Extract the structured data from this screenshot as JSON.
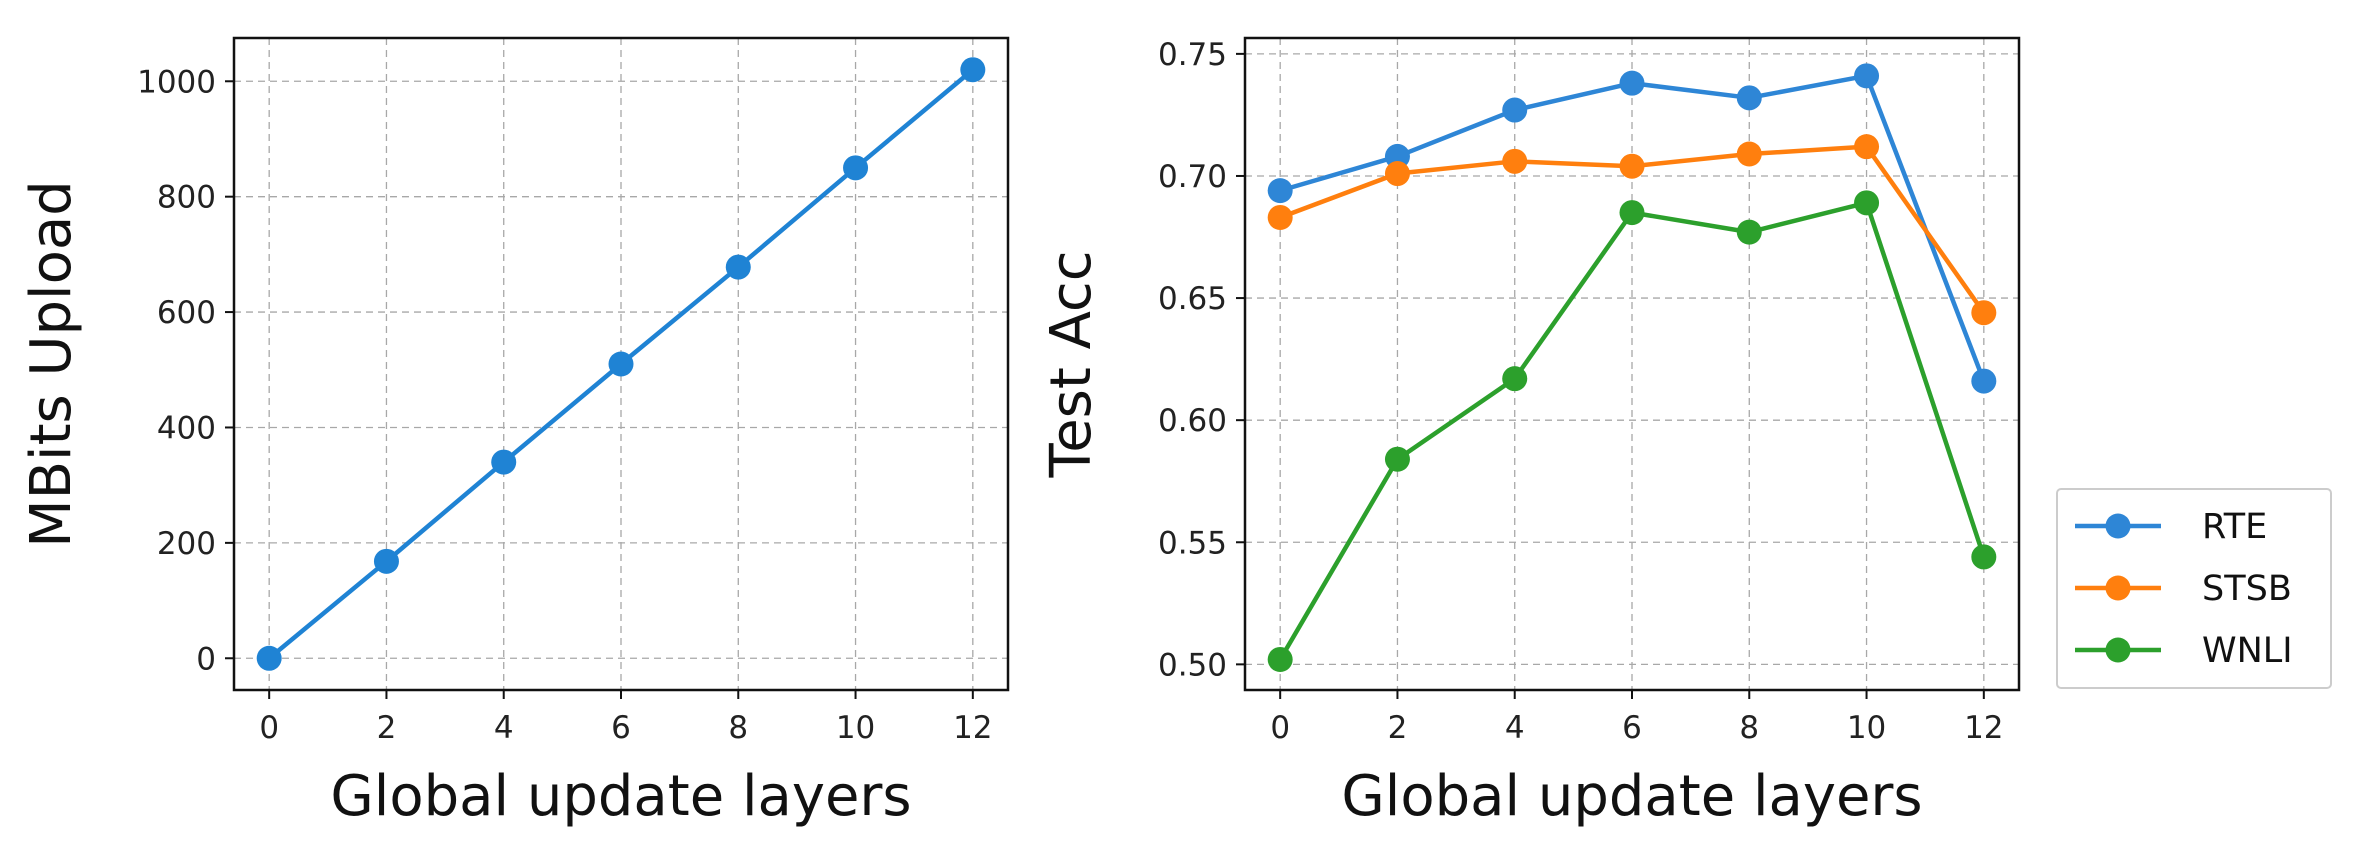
{
  "chart_data": [
    {
      "type": "line",
      "xlabel": "Global update layers",
      "ylabel": "MBits Upload",
      "x": [
        0,
        2,
        4,
        6,
        8,
        10,
        12
      ],
      "xlim": [
        -0.6,
        12.6
      ],
      "ylim": [
        -55,
        1075
      ],
      "xticks": [
        0,
        2,
        4,
        6,
        8,
        10,
        12
      ],
      "yticks": [
        0,
        200,
        400,
        600,
        800,
        1000
      ],
      "grid": true,
      "series": [
        {
          "values": [
            0,
            168,
            340,
            510,
            678,
            850,
            1020
          ],
          "color": "#1f83d4"
        }
      ]
    },
    {
      "type": "line",
      "xlabel": "Global update layers",
      "ylabel": "Test Acc",
      "x": [
        0,
        2,
        4,
        6,
        8,
        10,
        12
      ],
      "xlim": [
        -0.6,
        12.6
      ],
      "ylim": [
        0.4895,
        0.7565
      ],
      "xticks": [
        0,
        2,
        4,
        6,
        8,
        10,
        12
      ],
      "yticks": [
        "0.50",
        "0.55",
        "0.60",
        "0.65",
        "0.70",
        "0.75"
      ],
      "grid": true,
      "legend": "outside-right",
      "series": [
        {
          "name": "RTE",
          "values": [
            0.694,
            0.708,
            0.727,
            0.738,
            0.732,
            0.741,
            0.616
          ],
          "color": "#2e86d6"
        },
        {
          "name": "STSB",
          "values": [
            0.683,
            0.701,
            0.706,
            0.704,
            0.709,
            0.712,
            0.644
          ],
          "color": "#ff7f0e"
        },
        {
          "name": "WNLI",
          "values": [
            0.502,
            0.584,
            0.617,
            0.685,
            0.677,
            0.689,
            0.544
          ],
          "color": "#2ca02c"
        }
      ]
    }
  ]
}
